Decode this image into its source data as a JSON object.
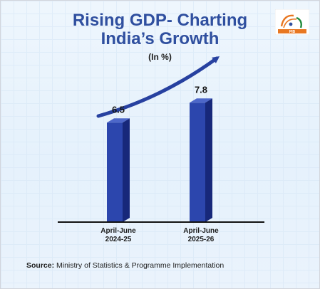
{
  "title_line1": "Rising GDP- Charting",
  "title_line2": "India’s Growth",
  "unit": "(In %)",
  "logo_text": "PIB",
  "source_label": "Source:",
  "source_text": "Ministry of Statistics & Programme Implementation",
  "colors": {
    "title": "#2f4f9f",
    "bar_front": "#2c46ad",
    "bar_side": "#17287a",
    "bar_top": "#4d67c9",
    "arrow": "#2741a0",
    "logo_saffron": "#e87722",
    "logo_green": "#1f8a3b"
  },
  "chart_data": {
    "type": "bar",
    "categories": [
      "April-June\n2024-25",
      "April-June\n2025-26"
    ],
    "category_lines": [
      [
        "April-June",
        "2024-25"
      ],
      [
        "April-June",
        "2025-26"
      ]
    ],
    "values": [
      6.5,
      7.8
    ],
    "data_labels": [
      "6.5",
      "7.8"
    ],
    "title": "Rising GDP- Charting India’s Growth",
    "ylabel": "(In %)",
    "grid": false,
    "legend": "none"
  }
}
